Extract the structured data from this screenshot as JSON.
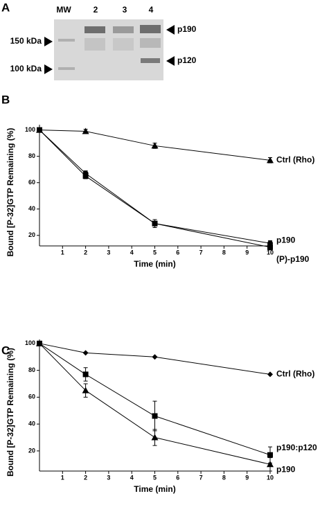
{
  "gel": {
    "panel_label": "A",
    "lanes": [
      "MW",
      "2",
      "3",
      "4"
    ],
    "right_labels": [
      "p190",
      "p120"
    ],
    "left_labels": [
      "150 kDa",
      "100 kDa"
    ]
  },
  "chart_data": [
    {
      "type": "line",
      "panel_label": "B",
      "x_label": "Time (min)",
      "y_label": "Bound [P-32]GTP Remaining (%)",
      "x": [
        0,
        2,
        5,
        10
      ],
      "xlim": [
        0,
        10
      ],
      "xticks": [
        1,
        2,
        3,
        4,
        5,
        6,
        7,
        8,
        9,
        10
      ],
      "ylim": [
        12,
        104
      ],
      "yticks": [
        20,
        40,
        60,
        80,
        100
      ],
      "series": [
        {
          "name": "Ctrl (Rho)",
          "color": "#000000",
          "marker": "triangle",
          "values": [
            100,
            99,
            88,
            77
          ],
          "errors": [
            0,
            1.5,
            2,
            2
          ]
        },
        {
          "name": "p190",
          "color": "#000000",
          "marker": "circle",
          "values": [
            100,
            67,
            29,
            14
          ],
          "errors": [
            0,
            2,
            3,
            2
          ]
        },
        {
          "name": "(P)-p190",
          "color": "#000000",
          "marker": "square",
          "values": [
            100,
            65,
            29,
            11
          ],
          "errors": [
            0,
            2,
            3,
            2
          ]
        }
      ]
    },
    {
      "type": "line",
      "panel_label": "C",
      "x_label": "Time (min)",
      "y_label": "Bound [P-32]GTP Remaining (%)",
      "x": [
        0,
        2,
        5,
        10
      ],
      "xlim": [
        0,
        10
      ],
      "xticks": [
        1,
        2,
        3,
        4,
        5,
        6,
        7,
        8,
        9,
        10
      ],
      "ylim": [
        5,
        103
      ],
      "yticks": [
        20,
        40,
        60,
        80,
        100
      ],
      "series": [
        {
          "name": "Ctrl (Rho)",
          "color": "#000000",
          "marker": "diamond",
          "values": [
            100,
            93,
            90,
            77
          ],
          "errors": [
            0,
            0,
            0,
            0
          ]
        },
        {
          "name": "p190:p120",
          "color": "#000000",
          "marker": "square",
          "values": [
            100,
            77,
            46,
            17
          ],
          "errors": [
            0,
            5,
            11,
            6
          ]
        },
        {
          "name": "p190",
          "color": "#000000",
          "marker": "triangle",
          "values": [
            100,
            65,
            30,
            10
          ],
          "errors": [
            0,
            5,
            6,
            5
          ]
        }
      ]
    }
  ]
}
